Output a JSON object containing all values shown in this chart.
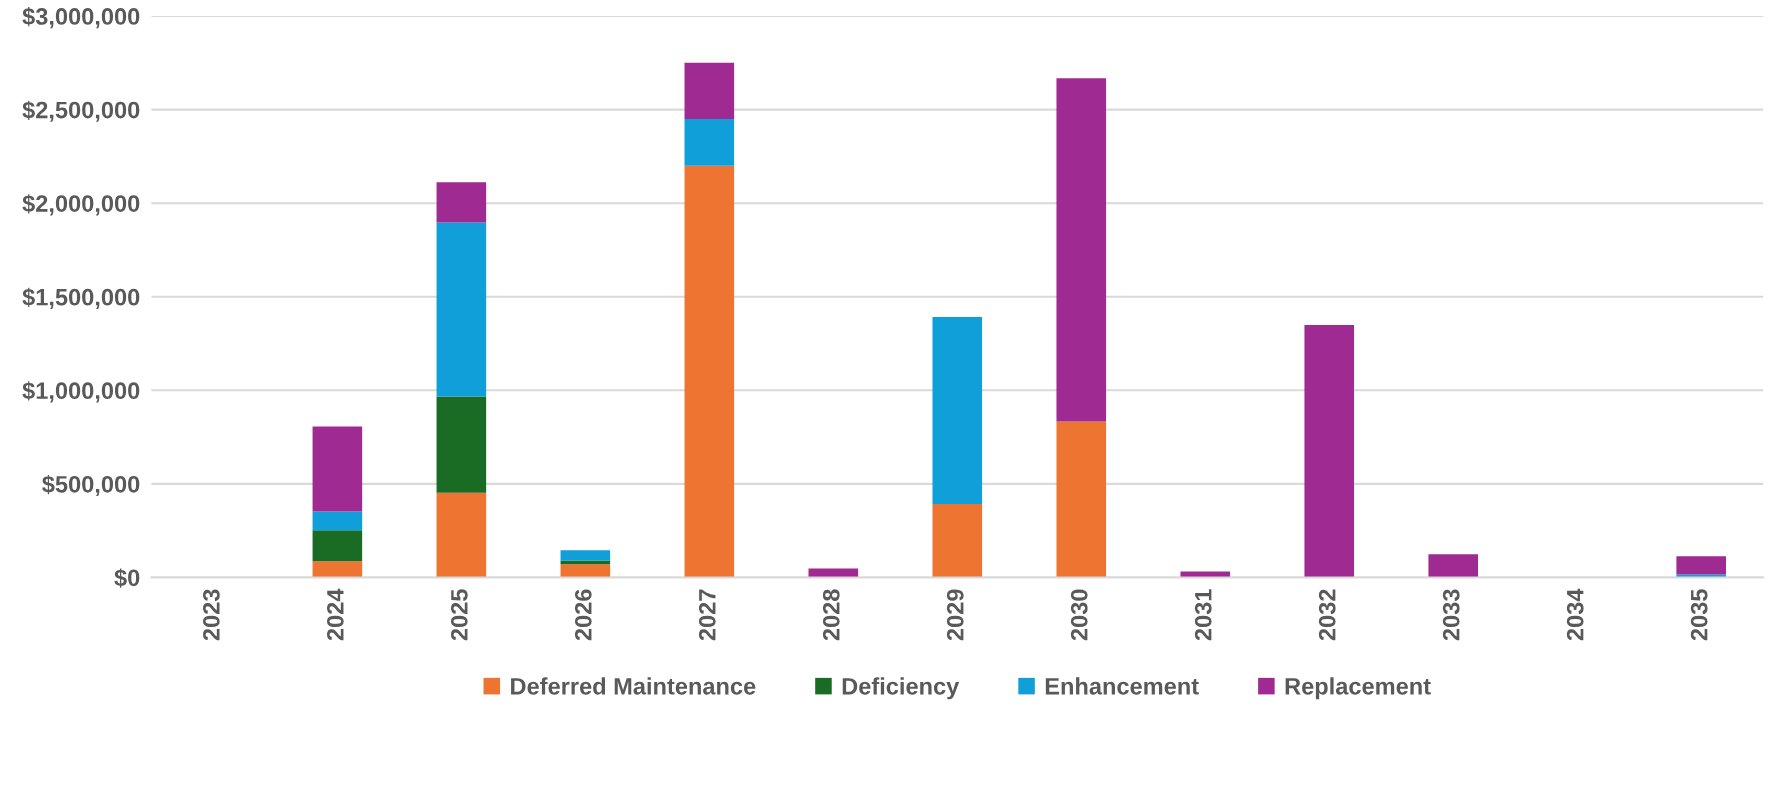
{
  "chart_data": {
    "type": "bar",
    "stacked": true,
    "categories": [
      "2023",
      "2024",
      "2025",
      "2026",
      "2027",
      "2028",
      "2029",
      "2030",
      "2031",
      "2032",
      "2033",
      "2034",
      "2035"
    ],
    "series": [
      {
        "name": "Deferred Maintenance",
        "color": "#ed7431",
        "values": [
          0,
          87000,
          452000,
          70000,
          2200000,
          0,
          392000,
          833000,
          0,
          0,
          0,
          0,
          0
        ]
      },
      {
        "name": "Deficiency",
        "color": "#1a6b24",
        "values": [
          0,
          165000,
          515000,
          21000,
          0,
          0,
          0,
          0,
          0,
          0,
          0,
          0,
          0
        ]
      },
      {
        "name": "Enhancement",
        "color": "#109fd8",
        "values": [
          0,
          100000,
          930000,
          54000,
          250000,
          0,
          1000000,
          0,
          0,
          0,
          0,
          0,
          16000
        ]
      },
      {
        "name": "Replacement",
        "color": "#9e2a92",
        "values": [
          0,
          455000,
          215000,
          0,
          300000,
          48000,
          0,
          1834000,
          32000,
          1349000,
          124000,
          0,
          97000
        ]
      }
    ],
    "ylim": [
      0,
      3000000
    ],
    "yticks": [
      {
        "value": 0,
        "label": "$0"
      },
      {
        "value": 500000,
        "label": "$500,000"
      },
      {
        "value": 1000000,
        "label": "$1,000,000"
      },
      {
        "value": 1500000,
        "label": "$1,500,000"
      },
      {
        "value": 2000000,
        "label": "$2,000,000"
      },
      {
        "value": 2500000,
        "label": "$2,500,000"
      },
      {
        "value": 3000000,
        "label": "$3,000,000"
      }
    ],
    "grid": "y",
    "legend": "bottom"
  }
}
